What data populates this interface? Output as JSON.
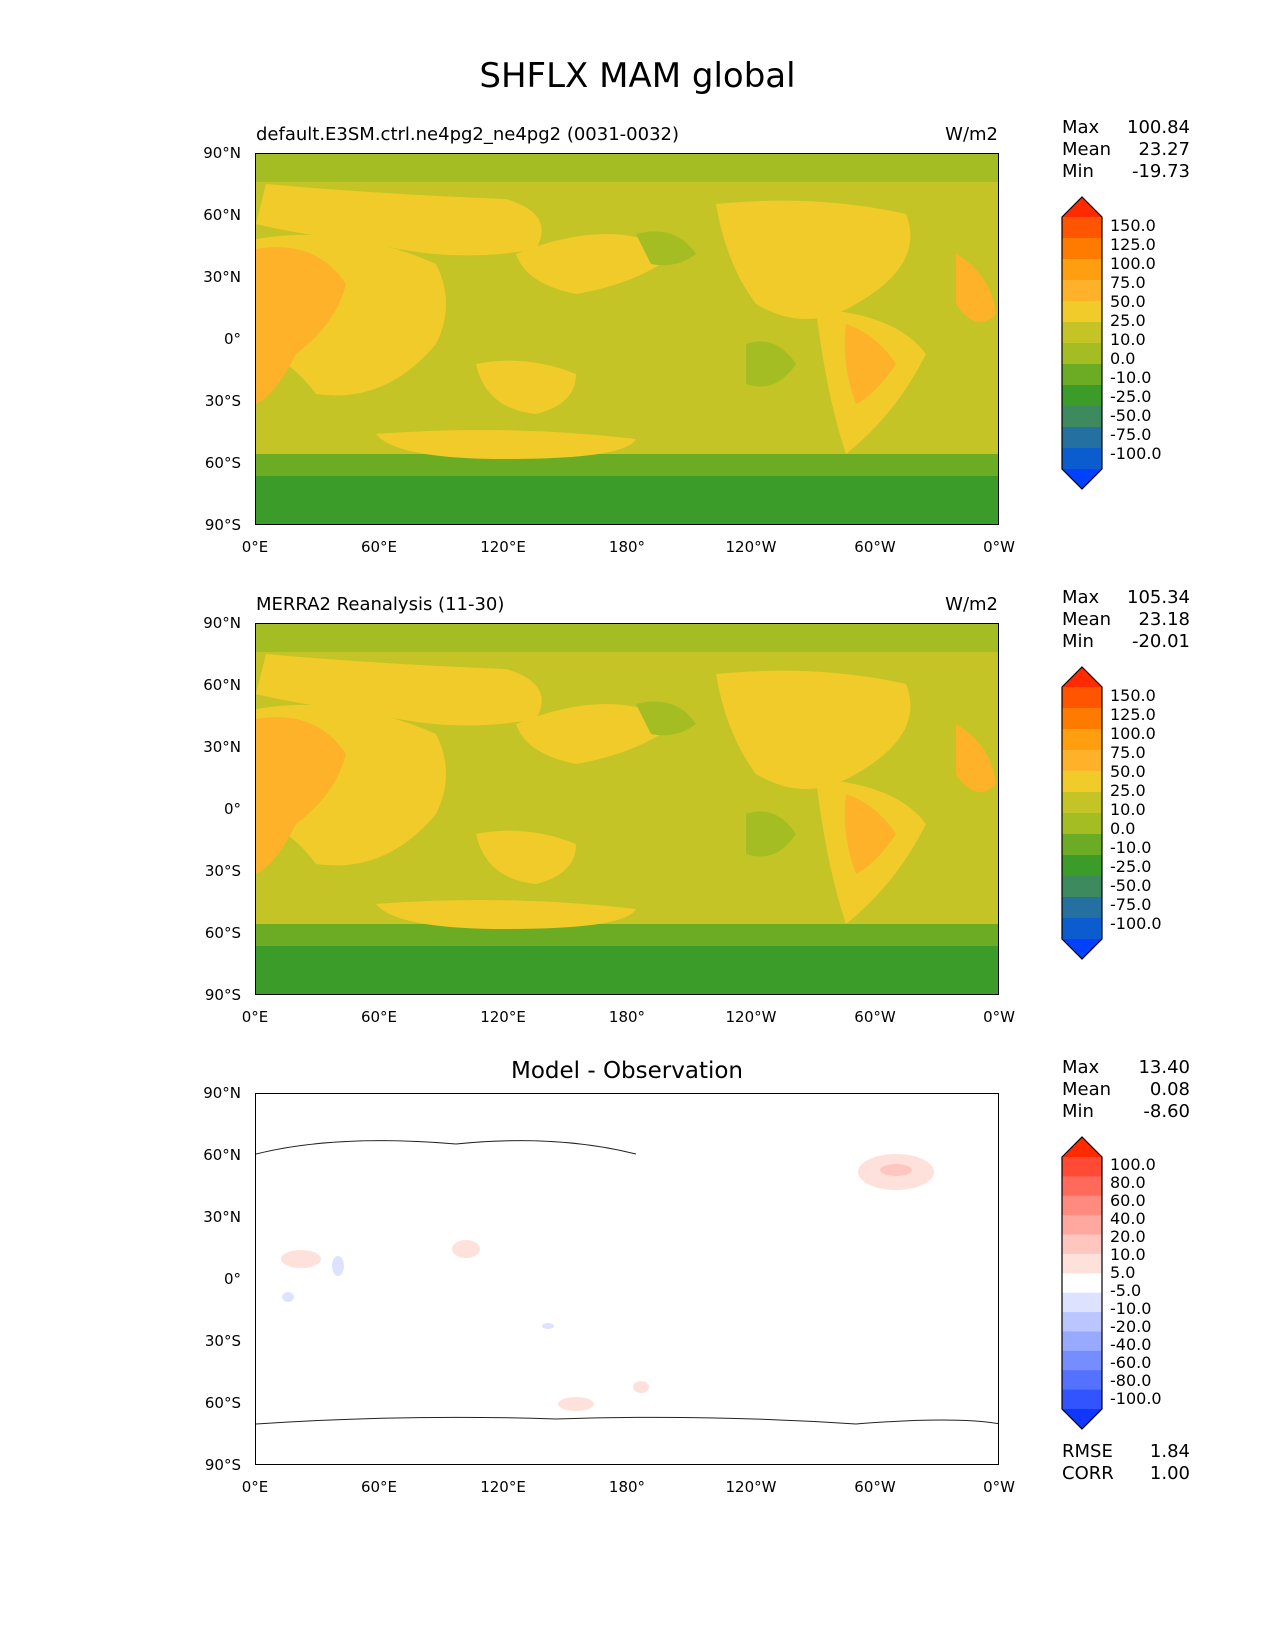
{
  "figure": {
    "title": "SHFLX MAM global"
  },
  "lat_labels": [
    "90°N",
    "60°N",
    "30°N",
    "0°",
    "30°S",
    "60°S",
    "90°S"
  ],
  "lon_labels": [
    "0°E",
    "60°E",
    "120°E",
    "180°",
    "120°W",
    "60°W",
    "0°W"
  ],
  "panels": [
    {
      "id": "test",
      "title": "default.E3SM.ctrl.ne4pg2_ne4pg2 (0031-0032)",
      "units": "W/m2",
      "stats": [
        {
          "name": "Max",
          "value": "100.84"
        },
        {
          "name": "Mean",
          "value": "23.27"
        },
        {
          "name": "Min",
          "value": "-19.73"
        }
      ],
      "colorbar": {
        "levels": [
          "150.0",
          "125.0",
          "100.0",
          "75.0",
          "50.0",
          "25.0",
          "10.0",
          "0.0",
          "-10.0",
          "-25.0",
          "-50.0",
          "-75.0",
          "-100.0"
        ],
        "colors": [
          "#ff2a00",
          "#ff5500",
          "#ff7b00",
          "#ff9f10",
          "#fdb22a",
          "#f1cb2a",
          "#c4c426",
          "#a3bd22",
          "#6bac24",
          "#3c9c2a",
          "#3d8a5e",
          "#2470a0",
          "#0a5ccf",
          "#0040ff"
        ]
      }
    },
    {
      "id": "reference",
      "title": "MERRA2 Reanalysis (11-30)",
      "units": "W/m2",
      "stats": [
        {
          "name": "Max",
          "value": "105.34"
        },
        {
          "name": "Mean",
          "value": "23.18"
        },
        {
          "name": "Min",
          "value": "-20.01"
        }
      ],
      "colorbar": {
        "levels": [
          "150.0",
          "125.0",
          "100.0",
          "75.0",
          "50.0",
          "25.0",
          "10.0",
          "0.0",
          "-10.0",
          "-25.0",
          "-50.0",
          "-75.0",
          "-100.0"
        ],
        "colors": [
          "#ff2a00",
          "#ff5500",
          "#ff7b00",
          "#ff9f10",
          "#fdb22a",
          "#f1cb2a",
          "#c4c426",
          "#a3bd22",
          "#6bac24",
          "#3c9c2a",
          "#3d8a5e",
          "#2470a0",
          "#0a5ccf",
          "#0040ff"
        ]
      }
    },
    {
      "id": "difference",
      "title": "Model - Observation",
      "stats": [
        {
          "name": "Max",
          "value": "13.40"
        },
        {
          "name": "Mean",
          "value": "0.08"
        },
        {
          "name": "Min",
          "value": "-8.60"
        }
      ],
      "metrics": [
        {
          "name": "RMSE",
          "value": "1.84"
        },
        {
          "name": "CORR",
          "value": "1.00"
        }
      ],
      "colorbar": {
        "levels": [
          "100.0",
          "80.0",
          "60.0",
          "40.0",
          "20.0",
          "10.0",
          "5.0",
          "-5.0",
          "-10.0",
          "-20.0",
          "-40.0",
          "-60.0",
          "-80.0",
          "-100.0"
        ],
        "colors": [
          "#ff2a00",
          "#ff4a36",
          "#ff6a5a",
          "#ff8a7e",
          "#ffa8a0",
          "#ffc6bf",
          "#ffe1dc",
          "#ffffff",
          "#dde3ff",
          "#bac6ff",
          "#98aaff",
          "#768dff",
          "#5471ff",
          "#3254ff",
          "#0f37ff"
        ]
      }
    }
  ]
}
